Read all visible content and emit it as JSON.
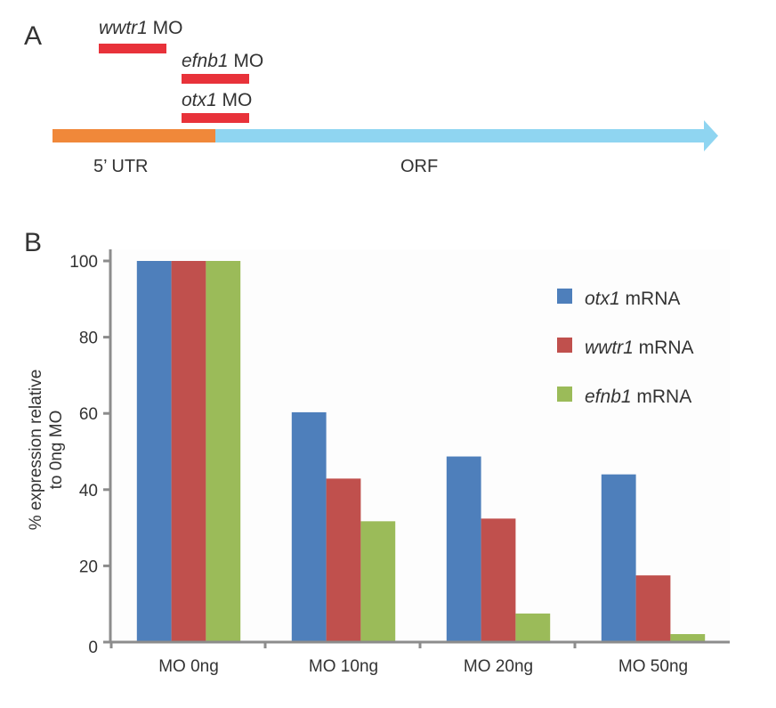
{
  "panel_a": {
    "letter": "A",
    "morpholinos": [
      {
        "gene": "wwtr1",
        "suffix": " MO",
        "target_start": 0.285,
        "target_end": 0.7
      },
      {
        "gene": "efnb1",
        "suffix": " MO",
        "target_start": 0.79,
        "target_end": 1.21
      },
      {
        "gene": "otx1",
        "suffix": " MO",
        "target_start": 0.79,
        "target_end": 1.21
      }
    ],
    "transcript": {
      "utr_label": "5’ UTR",
      "orf_label": "ORF",
      "utr_color": "#f0883a",
      "orf_color": "#8fd5f1",
      "mo_color": "#e8323a"
    }
  },
  "panel_b": {
    "letter": "B"
  },
  "chart_data": {
    "type": "bar",
    "title": "",
    "xlabel": "",
    "ylabel": "% expression relative to 0ng MO",
    "ylabel_lines": [
      "% expression relative",
      "to 0ng MO"
    ],
    "categories": [
      "MO 0ng",
      "MO 10ng",
      "MO 20ng",
      "MO 50ng"
    ],
    "series": [
      {
        "name": "otx1 mRNA",
        "gene": "otx1",
        "suffix": " mRNA",
        "color": "#4e7fbb",
        "values": [
          100,
          60.3,
          48.7,
          44.0
        ]
      },
      {
        "name": "wwtr1 mRNA",
        "gene": "wwtr1",
        "suffix": " mRNA",
        "color": "#c0504d",
        "values": [
          100,
          42.9,
          32.4,
          17.5
        ]
      },
      {
        "name": "efnb1 mRNA",
        "gene": "efnb1",
        "suffix": " mRNA",
        "color": "#9bbb59",
        "values": [
          100,
          31.7,
          7.5,
          2.1
        ]
      }
    ],
    "ylim": [
      0,
      100
    ],
    "yticks": [
      0,
      20,
      40,
      60,
      80,
      100
    ],
    "grid": false,
    "legend_position": "top-right"
  }
}
